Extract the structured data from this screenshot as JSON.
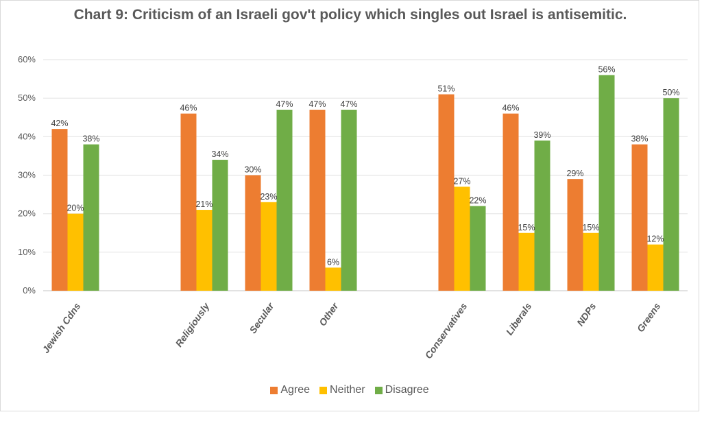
{
  "chart_data": {
    "type": "bar",
    "title": "Chart 9: Criticism of an Israeli gov't policy which singles out Israel is antisemitic.",
    "xlabel": "",
    "ylabel": "",
    "ylim": [
      0,
      60
    ],
    "yticks": [
      "0%",
      "10%",
      "20%",
      "30%",
      "40%",
      "50%",
      "60%"
    ],
    "ytick_values": [
      0,
      10,
      20,
      30,
      40,
      50,
      60
    ],
    "grid": true,
    "legend_position": "bottom",
    "categories": [
      "Jewish Cdns",
      "",
      "Religiously",
      "Secular",
      "Other",
      "",
      "Conservatives",
      "Liberals",
      "NDPs",
      "Greens"
    ],
    "series": [
      {
        "name": "Agree",
        "color": "#ED7D31",
        "values": [
          42,
          null,
          46,
          30,
          47,
          null,
          51,
          46,
          29,
          38
        ]
      },
      {
        "name": "Neither",
        "color": "#FFC000",
        "values": [
          20,
          null,
          21,
          23,
          6,
          null,
          27,
          15,
          15,
          12
        ]
      },
      {
        "name": "Disagree",
        "color": "#70AD47",
        "values": [
          38,
          null,
          34,
          47,
          47,
          null,
          22,
          39,
          56,
          50
        ]
      }
    ],
    "value_suffix": "%"
  }
}
